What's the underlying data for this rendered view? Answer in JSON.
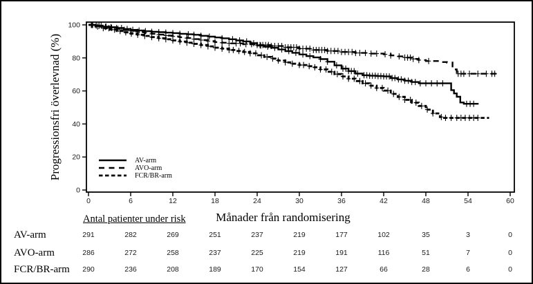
{
  "figure": {
    "background": "#ffffff",
    "border_color": "#000000",
    "ink_color": "#000000"
  },
  "chart_data": {
    "type": "line",
    "subtype": "kaplan-meier-step",
    "title": "",
    "x_axis_title": "Månader från randomisering",
    "y_axis_title": "Progressionsfri överlevnad (%)",
    "x_range": [
      0,
      60
    ],
    "y_range": [
      0,
      100
    ],
    "x_ticks": [
      0,
      6,
      12,
      18,
      24,
      30,
      36,
      42,
      48,
      54,
      60
    ],
    "y_ticks": [
      0,
      20,
      40,
      60,
      80,
      100
    ],
    "grid": false,
    "legend_position": "inside-lower-left",
    "series": [
      {
        "name": "AV-arm",
        "line_style": "solid",
        "points": [
          [
            0,
            100
          ],
          [
            1,
            99.6
          ],
          [
            2,
            99
          ],
          [
            3,
            98.6
          ],
          [
            4,
            98.1
          ],
          [
            5,
            97.5
          ],
          [
            6,
            97
          ],
          [
            7,
            96.6
          ],
          [
            8,
            96.2
          ],
          [
            9,
            95.8
          ],
          [
            10,
            95.6
          ],
          [
            11,
            95.3
          ],
          [
            12,
            95
          ],
          [
            13,
            94.6
          ],
          [
            14,
            94.3
          ],
          [
            15,
            94
          ],
          [
            16,
            93.4
          ],
          [
            17,
            92.9
          ],
          [
            18,
            92.4
          ],
          [
            19,
            91.9
          ],
          [
            20,
            91.3
          ],
          [
            21,
            90.6
          ],
          [
            22,
            90
          ],
          [
            23,
            88.9
          ],
          [
            24,
            87.5
          ],
          [
            25,
            86.8
          ],
          [
            26,
            86.1
          ],
          [
            27,
            85.1
          ],
          [
            28,
            84.1
          ],
          [
            29,
            83.1
          ],
          [
            30,
            82.1
          ],
          [
            31,
            81.1
          ],
          [
            32,
            80.3
          ],
          [
            33,
            79.3
          ],
          [
            34,
            77.7
          ],
          [
            35,
            75.5
          ],
          [
            36,
            73.5
          ],
          [
            37,
            72
          ],
          [
            38,
            70.5
          ],
          [
            39,
            69.5
          ],
          [
            40,
            69.2
          ],
          [
            41,
            69
          ],
          [
            42,
            68.8
          ],
          [
            43,
            67.8
          ],
          [
            44,
            67
          ],
          [
            45,
            66.2
          ],
          [
            46,
            65.4
          ],
          [
            47,
            64.6
          ],
          [
            51.3,
            64.6
          ],
          [
            51.6,
            60.5
          ],
          [
            52,
            58.5
          ],
          [
            52.4,
            56.5
          ],
          [
            52.9,
            53
          ],
          [
            53.4,
            52.2
          ],
          [
            55.5,
            52.2
          ]
        ],
        "censor_marks": [
          0.4,
          1.1,
          1.8,
          2.5,
          3.2,
          4,
          4.7,
          5.5,
          6.3,
          7.2,
          8.1,
          9,
          10,
          11,
          12,
          13,
          14.2,
          15,
          16,
          17.2,
          19,
          20.5,
          21.5,
          22.5,
          23.5,
          24.5,
          25.5,
          26.5,
          27.5,
          28.5,
          29.5,
          30.5,
          31.5,
          33,
          34,
          35.3,
          36.2,
          36.6,
          37,
          37.4,
          37.8,
          38.3,
          39.2,
          39.6,
          40,
          40.4,
          40.8,
          41.2,
          41.6,
          42,
          42.4,
          42.8,
          43.2,
          43.6,
          44.1,
          44.5,
          45,
          45.5,
          46,
          46.5,
          47.2,
          48,
          48.8,
          49.6,
          50.4,
          53.8,
          54.3,
          54.8
        ]
      },
      {
        "name": "AVO-arm",
        "line_style": "long-dash",
        "points": [
          [
            0,
            100
          ],
          [
            1,
            99.4
          ],
          [
            2,
            98.8
          ],
          [
            3,
            98.2
          ],
          [
            4,
            97.6
          ],
          [
            5,
            97
          ],
          [
            6,
            96.4
          ],
          [
            7,
            95.8
          ],
          [
            8,
            95.2
          ],
          [
            9,
            94.6
          ],
          [
            10,
            94.1
          ],
          [
            11,
            93.5
          ],
          [
            12,
            93
          ],
          [
            13,
            92.5
          ],
          [
            14,
            92
          ],
          [
            15,
            91.4
          ],
          [
            16,
            90.8
          ],
          [
            17,
            90.2
          ],
          [
            18,
            89.6
          ],
          [
            19,
            89.2
          ],
          [
            20,
            88.8
          ],
          [
            22,
            88.3
          ],
          [
            24,
            87.8
          ],
          [
            26,
            87.2
          ],
          [
            28,
            86.4
          ],
          [
            30,
            85.6
          ],
          [
            32,
            84.8
          ],
          [
            34,
            84.2
          ],
          [
            36,
            83.6
          ],
          [
            38,
            83
          ],
          [
            40,
            82.6
          ],
          [
            42,
            82.2
          ],
          [
            43,
            81.5
          ],
          [
            44,
            80.9
          ],
          [
            45,
            80.2
          ],
          [
            46,
            79.4
          ],
          [
            47,
            78.7
          ],
          [
            48,
            78.1
          ],
          [
            50,
            77.5
          ],
          [
            51,
            77.2
          ],
          [
            51.8,
            73
          ],
          [
            52.4,
            70.4
          ],
          [
            58.2,
            70.4
          ]
        ],
        "censor_marks": [
          0.6,
          1.5,
          2.4,
          3.3,
          4.2,
          5.1,
          6,
          7,
          8,
          9,
          10,
          11,
          12,
          13,
          14,
          15,
          16,
          17,
          18,
          19,
          20,
          21,
          21.6,
          22.4,
          23.2,
          24,
          24.4,
          24.8,
          25.2,
          25.6,
          26,
          26.5,
          27,
          27.5,
          28,
          28.4,
          28.8,
          29.2,
          29.6,
          30,
          30.5,
          31,
          31.5,
          32,
          32.4,
          32.8,
          33.2,
          33.6,
          34,
          34.5,
          35,
          35.5,
          36,
          36.5,
          37,
          37.5,
          38,
          38.6,
          39.4,
          40.2,
          41,
          42.2,
          43,
          44.2,
          45,
          45.4,
          45.8,
          46.2,
          47,
          48.4,
          52.6,
          53,
          53.4,
          54.2,
          55.4,
          56.6,
          57.4,
          57.8
        ]
      },
      {
        "name": "FCR/BR-arm",
        "line_style": "dense-dash",
        "points": [
          [
            0,
            100
          ],
          [
            1,
            99
          ],
          [
            2,
            98
          ],
          [
            3,
            97.1
          ],
          [
            4,
            96.3
          ],
          [
            5,
            95.5
          ],
          [
            6,
            94.7
          ],
          [
            7,
            94
          ],
          [
            8,
            93.3
          ],
          [
            9,
            92.6
          ],
          [
            10,
            91.9
          ],
          [
            11,
            91.3
          ],
          [
            12,
            90.6
          ],
          [
            13,
            89.9
          ],
          [
            14,
            89.2
          ],
          [
            15,
            88.5
          ],
          [
            16,
            87.8
          ],
          [
            17,
            87
          ],
          [
            18,
            86.2
          ],
          [
            19,
            85.6
          ],
          [
            20,
            84.8
          ],
          [
            21,
            84.2
          ],
          [
            22,
            83.6
          ],
          [
            23,
            82.8
          ],
          [
            24,
            81.6
          ],
          [
            25,
            80.6
          ],
          [
            26,
            79.6
          ],
          [
            27,
            78.4
          ],
          [
            28,
            77.3
          ],
          [
            29,
            76.5
          ],
          [
            30,
            75.7
          ],
          [
            31,
            75
          ],
          [
            32,
            74.3
          ],
          [
            33,
            73
          ],
          [
            34,
            71.6
          ],
          [
            35,
            70.2
          ],
          [
            36,
            68.8
          ],
          [
            37,
            67.4
          ],
          [
            38,
            66
          ],
          [
            39,
            64.6
          ],
          [
            40,
            63.2
          ],
          [
            41,
            61.8
          ],
          [
            42,
            60.2
          ],
          [
            43,
            58.2
          ],
          [
            44,
            56.4
          ],
          [
            45,
            54.6
          ],
          [
            46,
            52.9
          ],
          [
            47,
            50.9
          ],
          [
            48,
            48.7
          ],
          [
            49,
            46.4
          ],
          [
            50,
            44.2
          ],
          [
            50.6,
            43.7
          ],
          [
            57,
            43.7
          ]
        ],
        "censor_marks": [
          0.5,
          1.3,
          2.1,
          2.9,
          3.7,
          4.5,
          5.3,
          6.1,
          7,
          8,
          9,
          10,
          11,
          12,
          13,
          14,
          15,
          16,
          17,
          18,
          19,
          20,
          20.6,
          21.4,
          22.2,
          23,
          23.8,
          24.6,
          25.4,
          26.2,
          27,
          28,
          29,
          30,
          30.6,
          31.4,
          32.2,
          33,
          33.8,
          34.6,
          35.4,
          36.2,
          37,
          37.8,
          38.6,
          39.4,
          40.2,
          41,
          41.8,
          42.6,
          43.4,
          44.2,
          45,
          45.8,
          46.6,
          47.4,
          48.2,
          49,
          50.2,
          50.8,
          51.6,
          52.4,
          53,
          53.6,
          54.2,
          54.8,
          55.4
        ]
      }
    ]
  },
  "legend": {
    "items": [
      {
        "label": "AV-arm",
        "style": "solid"
      },
      {
        "label": "AVO-arm",
        "style": "long-dash"
      },
      {
        "label": "FCR/BR-arm",
        "style": "dense-dash"
      }
    ]
  },
  "risk_table": {
    "header": "Antal patienter under risk",
    "time_points": [
      0,
      6,
      12,
      18,
      24,
      30,
      36,
      42,
      48,
      54,
      60
    ],
    "rows": [
      {
        "label": "AV-arm",
        "counts": [
          291,
          282,
          269,
          251,
          237,
          219,
          177,
          102,
          35,
          3,
          0
        ]
      },
      {
        "label": "AVO-arm",
        "counts": [
          286,
          272,
          258,
          237,
          225,
          219,
          191,
          116,
          51,
          7,
          0
        ]
      },
      {
        "label": "FCR/BR-arm",
        "counts": [
          290,
          236,
          208,
          189,
          170,
          154,
          127,
          66,
          28,
          6,
          0
        ]
      }
    ]
  }
}
